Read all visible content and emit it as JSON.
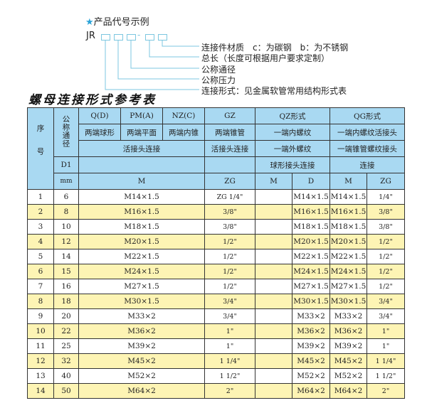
{
  "example": {
    "heading": "产品代号示例",
    "code_prefix": "JR",
    "dash": "-",
    "labels": [
      "连接件材质　c：为碳钢　b：为不锈钢",
      "总长（长度可根据用户要求定制）",
      "公称通径",
      "公称压力",
      "连接形式：见金属软管常用结构形式表"
    ]
  },
  "table_title": "螺母连接形式参考表",
  "header": {
    "seq": "序号",
    "dn": "公称通径",
    "d1": "D1",
    "mm": "mm",
    "q": "Q(D)",
    "pm": "PM(A)",
    "nz": "NZ(C)",
    "gz": "GZ",
    "qz": "QZ形式",
    "qg": "QG形式",
    "q2": "两端球形",
    "pm2": "两端平面",
    "nz2": "两端内锥",
    "gz2": "两端锥管",
    "qz2": "一端内螺纹",
    "qg2": "一端内螺纹活接头",
    "union": "活接头连接",
    "gz3": "活接头连接",
    "qz3": "一端外螺纹",
    "qg3": "一端锥管螺纹接头",
    "qz4": "球形接头连接",
    "qg4": "连接",
    "m": "M",
    "zg": "ZG",
    "qzm": "M",
    "qzd": "D",
    "qgm": "M",
    "qgzg": "ZG"
  },
  "rows": [
    {
      "n": "1",
      "dn": "6",
      "m": "M14×1.5",
      "zg": "ZG 1/4\"",
      "qzm": "",
      "qzd": "M14×1.5",
      "qgm": "M14×1.5",
      "qgzg": "1/4\""
    },
    {
      "n": "2",
      "dn": "8",
      "m": "M16×1.5",
      "zg": "3/8\"",
      "qzm": "",
      "qzd": "M16×1.5",
      "qgm": "M16×1.5",
      "qgzg": "3/8\""
    },
    {
      "n": "3",
      "dn": "10",
      "m": "M18×1.5",
      "zg": "3/8\"",
      "qzm": "",
      "qzd": "M18×1.5",
      "qgm": "M18×1.5",
      "qgzg": "3/8\""
    },
    {
      "n": "4",
      "dn": "12",
      "m": "M20×1.5",
      "zg": "1/2\"",
      "qzm": "",
      "qzd": "M20×1.5",
      "qgm": "M20×1.5",
      "qgzg": "1/2\""
    },
    {
      "n": "5",
      "dn": "14",
      "m": "M22×1.5",
      "zg": "1/2\"",
      "qzm": "",
      "qzd": "M22×1.5",
      "qgm": "M22×1.5",
      "qgzg": "1/2\""
    },
    {
      "n": "6",
      "dn": "15",
      "m": "M24×1.5",
      "zg": "1/2\"",
      "qzm": "",
      "qzd": "M24×1.5",
      "qgm": "M24×1.5",
      "qgzg": "1/2\""
    },
    {
      "n": "7",
      "dn": "16",
      "m": "M27×1.5",
      "zg": "1/2\"",
      "qzm": "",
      "qzd": "M27×1.5",
      "qgm": "M27×1.5",
      "qgzg": "1/2\""
    },
    {
      "n": "8",
      "dn": "18",
      "m": "M30×1.5",
      "zg": "3/4\"",
      "qzm": "",
      "qzd": "M30×1.5",
      "qgm": "M30×1.5",
      "qgzg": "3/4\""
    },
    {
      "n": "9",
      "dn": "20",
      "m": "M33×2",
      "zg": "3/4\"",
      "qzm": "",
      "qzd": "M33×2",
      "qgm": "M33×2",
      "qgzg": "3/4\""
    },
    {
      "n": "10",
      "dn": "22",
      "m": "M36×2",
      "zg": "1\"",
      "qzm": "",
      "qzd": "M36×2",
      "qgm": "M36×2",
      "qgzg": "1\""
    },
    {
      "n": "11",
      "dn": "25",
      "m": "M39×2",
      "zg": "1\"",
      "qzm": "",
      "qzd": "M39×2",
      "qgm": "M39×2",
      "qgzg": "1\""
    },
    {
      "n": "12",
      "dn": "32",
      "m": "M45×2",
      "zg": "1 1/4\"",
      "qzm": "",
      "qzd": "M45×2",
      "qgm": "M45×2",
      "qgzg": "1 1/4\""
    },
    {
      "n": "13",
      "dn": "40",
      "m": "M52×2",
      "zg": "1 1/2\"",
      "qzm": "",
      "qzd": "M52×2",
      "qgm": "M52×2",
      "qgzg": "1 1/2\""
    },
    {
      "n": "14",
      "dn": "50",
      "m": "M64×2",
      "zg": "2\"",
      "qzm": "",
      "qzd": "M64×2",
      "qgm": "M64×2",
      "qgzg": "2\""
    }
  ],
  "colors": {
    "header": "#a9d9f2",
    "stripe": "#fdf4b4",
    "line": "#7cc7e0",
    "star": "#2aa3d8"
  }
}
